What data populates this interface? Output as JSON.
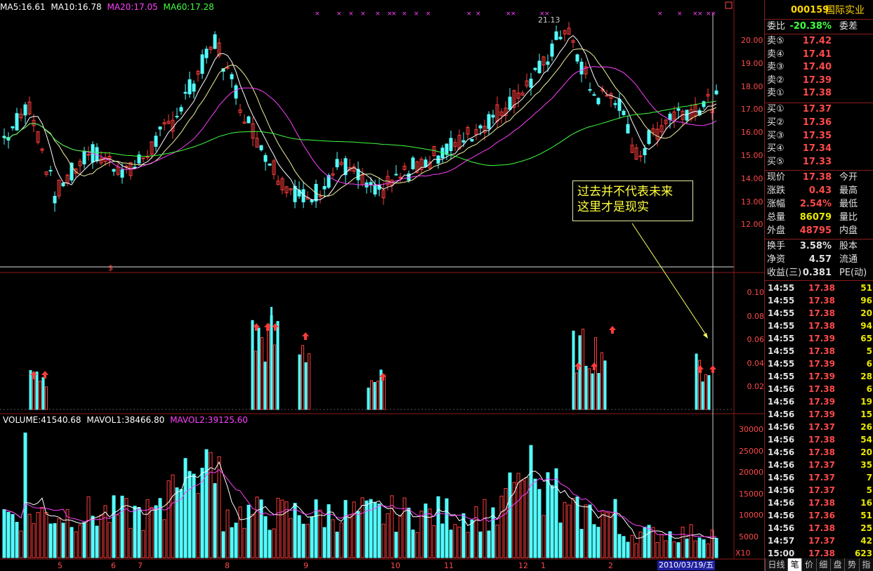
{
  "stock": {
    "code": "000159",
    "name": "国际实业"
  },
  "ma_legend": {
    "ma5": "MA5:16.61",
    "ma10": "MA10:16.78",
    "ma20": "MA20:17.05",
    "ma60": "MA60:17.28"
  },
  "vol_legend": {
    "volume": "VOLUME:41540.68",
    "mavol1": "MAVOL1:38466.80",
    "mavol2": "MAVOL2:39125.60"
  },
  "peak_label": "21.13",
  "price_axis": [
    "20.00",
    "19.00",
    "18.00",
    "17.00",
    "16.00",
    "15.00",
    "14.00",
    "13.00",
    "12.00"
  ],
  "mid_axis": [
    "0.10",
    "0.08",
    "0.06",
    "0.04",
    "0.02"
  ],
  "vol_axis": [
    "30000",
    "25000",
    "20000",
    "15000",
    "10000",
    "5000"
  ],
  "vol_unit": "X10",
  "months": [
    "5",
    "6",
    "7",
    "8",
    "9",
    "10",
    "11",
    "12",
    "1",
    "2"
  ],
  "date_label": "2010/03/19/五",
  "annotation": {
    "line1": "过去并不代表未来",
    "line2": "这里才是现实"
  },
  "weibi": {
    "label": "委比",
    "value": "-20.38%",
    "label2": "委差"
  },
  "sell": [
    {
      "label": "卖⑤",
      "price": "17.42"
    },
    {
      "label": "卖④",
      "price": "17.41"
    },
    {
      "label": "卖③",
      "price": "17.40"
    },
    {
      "label": "卖②",
      "price": "17.39"
    },
    {
      "label": "卖①",
      "price": "17.38"
    }
  ],
  "buy": [
    {
      "label": "买①",
      "price": "17.37"
    },
    {
      "label": "买②",
      "price": "17.36"
    },
    {
      "label": "买③",
      "price": "17.35"
    },
    {
      "label": "买④",
      "price": "17.34"
    },
    {
      "label": "买⑤",
      "price": "17.33"
    }
  ],
  "stats": [
    {
      "k": "现价",
      "v": "17.38",
      "k2": "今开"
    },
    {
      "k": "涨跌",
      "v": "0.43",
      "k2": "最高"
    },
    {
      "k": "涨幅",
      "v": "2.54%",
      "k2": "最低"
    },
    {
      "k": "总量",
      "v": "86079",
      "k2": "量比"
    },
    {
      "k": "外盘",
      "v": "48795",
      "k2": "内盘"
    }
  ],
  "stats2": [
    {
      "k": "换手",
      "v": "3.58%",
      "k2": "股本"
    },
    {
      "k": "净资",
      "v": "4.57",
      "k2": "流通"
    },
    {
      "k": "收益(三)",
      "v": "0.381",
      "k2": "PE(动)"
    }
  ],
  "ticks": [
    {
      "t": "14:55",
      "p": "17.38",
      "q": "51"
    },
    {
      "t": "14:55",
      "p": "17.38",
      "q": "96"
    },
    {
      "t": "14:55",
      "p": "17.38",
      "q": "20"
    },
    {
      "t": "14:55",
      "p": "17.38",
      "q": "94"
    },
    {
      "t": "14:55",
      "p": "17.39",
      "q": "65"
    },
    {
      "t": "14:55",
      "p": "17.38",
      "q": "5"
    },
    {
      "t": "14:55",
      "p": "17.39",
      "q": "6"
    },
    {
      "t": "14:55",
      "p": "17.39",
      "q": "28"
    },
    {
      "t": "14:56",
      "p": "17.38",
      "q": "6"
    },
    {
      "t": "14:56",
      "p": "17.39",
      "q": "19"
    },
    {
      "t": "14:56",
      "p": "17.39",
      "q": "15"
    },
    {
      "t": "14:56",
      "p": "17.37",
      "q": "26"
    },
    {
      "t": "14:56",
      "p": "17.38",
      "q": "54"
    },
    {
      "t": "14:56",
      "p": "17.38",
      "q": "20"
    },
    {
      "t": "14:56",
      "p": "17.37",
      "q": "35"
    },
    {
      "t": "14:56",
      "p": "17.37",
      "q": "7"
    },
    {
      "t": "14:56",
      "p": "17.37",
      "q": "5"
    },
    {
      "t": "14:56",
      "p": "17.38",
      "q": "16"
    },
    {
      "t": "14:56",
      "p": "17.36",
      "q": "51"
    },
    {
      "t": "14:56",
      "p": "17.38",
      "q": "25"
    },
    {
      "t": "14:57",
      "p": "17.37",
      "q": "42"
    },
    {
      "t": "15:00",
      "p": "17.38",
      "q": "623"
    }
  ],
  "tabs": [
    "日线",
    "笔",
    "价",
    "细",
    "盘",
    "势",
    "指"
  ],
  "colors": {
    "up": "#ff3c3c",
    "down": "#54ffff",
    "ma5": "#ffffff",
    "ma10": "#ffff00",
    "ma20": "#ff40ff",
    "ma60": "#40ff40",
    "grid": "#8c1c1c"
  }
}
